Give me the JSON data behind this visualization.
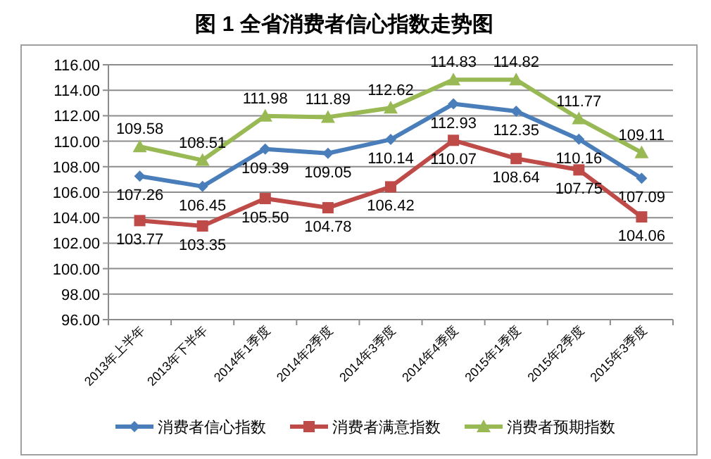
{
  "chart_data": {
    "type": "line",
    "title": "图 1  全省消费者信心指数走势图",
    "categories": [
      "2013年上半年",
      "2013年下半年",
      "2014年1季度",
      "2014年2季度",
      "2014年3季度",
      "2014年4季度",
      "2015年1季度",
      "2015年2季度",
      "2015年3季度"
    ],
    "series": [
      {
        "name": "消费者信心指数",
        "color": "#4a7ebb",
        "marker": "diamond",
        "values": [
          107.26,
          106.45,
          109.39,
          109.05,
          110.14,
          112.93,
          112.35,
          110.16,
          107.09
        ],
        "value_labels": [
          "107.26",
          "106.45",
          "109.39",
          "109.05",
          "110.14",
          "112.93",
          "112.35",
          "110.16",
          "107.09"
        ]
      },
      {
        "name": "消费者满意指数",
        "color": "#be4b48",
        "marker": "square",
        "values": [
          103.77,
          103.35,
          105.5,
          104.78,
          106.42,
          110.07,
          108.64,
          107.75,
          104.06
        ],
        "value_labels": [
          "103.77",
          "103.35",
          "105.50",
          "104.78",
          "106.42",
          "110.07",
          "108.64",
          "107.75",
          "104.06"
        ]
      },
      {
        "name": "消费者预期指数",
        "color": "#98b954",
        "marker": "triangle",
        "values": [
          109.58,
          108.51,
          111.98,
          111.89,
          112.62,
          114.83,
          114.82,
          111.77,
          109.11
        ],
        "value_labels": [
          "109.58",
          "108.51",
          "111.98",
          "111.89",
          "112.62",
          "114.83",
          "114.82",
          "111.77",
          "109.11"
        ]
      }
    ],
    "ylim": [
      96,
      116
    ],
    "yticks": [
      {
        "value": 96,
        "label": "96.00"
      },
      {
        "value": 98,
        "label": "98.00"
      },
      {
        "value": 100,
        "label": "100.00"
      },
      {
        "value": 102,
        "label": "102.00"
      },
      {
        "value": 104,
        "label": "104.00"
      },
      {
        "value": 106,
        "label": "106.00"
      },
      {
        "value": 108,
        "label": "108.00"
      },
      {
        "value": 110,
        "label": "110.00"
      },
      {
        "value": 112,
        "label": "112.00"
      },
      {
        "value": 114,
        "label": "114.00"
      },
      {
        "value": 116,
        "label": "116.00"
      }
    ],
    "grid": "y",
    "legend": "bottom"
  }
}
